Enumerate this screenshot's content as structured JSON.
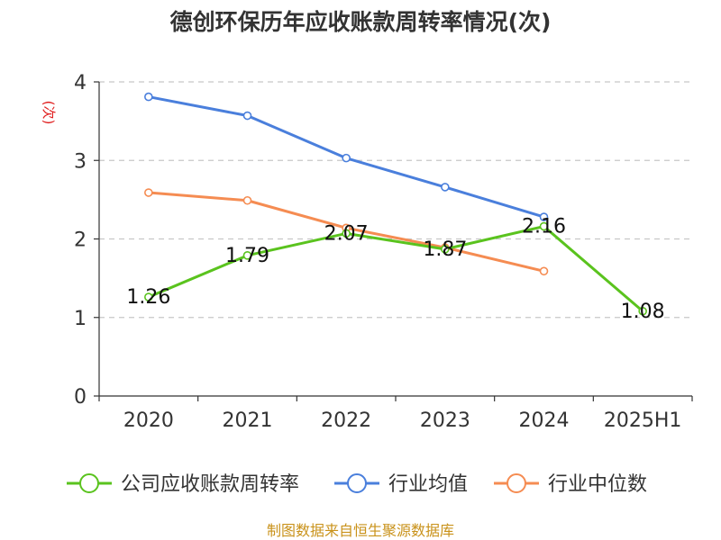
{
  "chart_data": {
    "type": "line",
    "title": "德创环保历年应收账款周转率情况(次)",
    "ylabel": "(次)",
    "categories": [
      "2020",
      "2021",
      "2022",
      "2023",
      "2024",
      "2025H1"
    ],
    "y_ticks": [
      "0",
      "1",
      "2",
      "3",
      "4"
    ],
    "ylim": [
      0,
      4
    ],
    "grid": "horizontal dashed",
    "legend_position": "bottom",
    "series": [
      {
        "name": "公司应收账款周转率",
        "color": "#5ac31e",
        "labeled": true,
        "values": [
          1.26,
          1.79,
          2.07,
          1.87,
          2.16,
          1.08
        ],
        "labels": [
          "1.26",
          "1.79",
          "2.07",
          "1.87",
          "2.16",
          "1.08"
        ]
      },
      {
        "name": "行业均值",
        "color": "#4a7fdc",
        "labeled": false,
        "values": [
          3.81,
          3.57,
          3.03,
          2.66,
          2.28,
          null
        ]
      },
      {
        "name": "行业中位数",
        "color": "#f58c52",
        "labeled": false,
        "values": [
          2.59,
          2.49,
          2.14,
          1.89,
          1.59,
          null
        ]
      }
    ],
    "source": "制图数据来自恒生聚源数据库"
  }
}
